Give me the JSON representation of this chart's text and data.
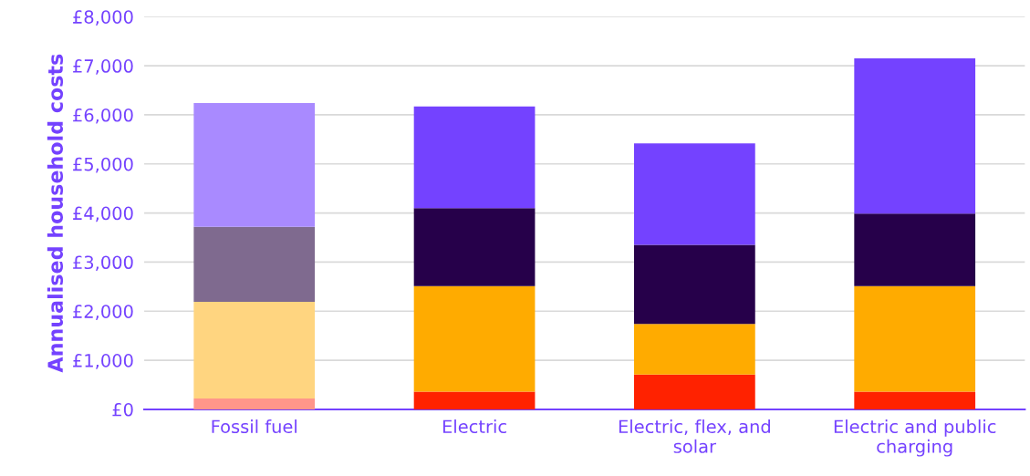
{
  "chart_data": {
    "type": "bar",
    "stacked": true,
    "ylabel": "Annualised household costs",
    "categories": [
      "Fossil fuel",
      "Electric",
      "Electric, flex, and solar",
      "Electric and public charging"
    ],
    "series": [
      {
        "colors": [
          "#ff968a",
          "#ff2200",
          "#ff2200",
          "#ff2200"
        ],
        "values": [
          220,
          360,
          710,
          360
        ]
      },
      {
        "colors": [
          "#ffd580",
          "#ffab00",
          "#ffab00",
          "#ffab00"
        ],
        "values": [
          1970,
          2150,
          1030,
          2150
        ]
      },
      {
        "colors": [
          "#7f6a8f",
          "#26004a",
          "#26004a",
          "#26004a"
        ],
        "values": [
          1530,
          1590,
          1610,
          1480
        ]
      },
      {
        "colors": [
          "#a98aff",
          "#7442ff",
          "#7442ff",
          "#7442ff"
        ],
        "values": [
          2520,
          2070,
          2070,
          3160
        ]
      }
    ],
    "ylim": [
      0,
      8000
    ],
    "yticks": [
      {
        "value": 0,
        "label": "£0"
      },
      {
        "value": 1000,
        "label": "£1,000"
      },
      {
        "value": 2000,
        "label": "£2,000"
      },
      {
        "value": 3000,
        "label": "£3,000"
      },
      {
        "value": 4000,
        "label": "£4,000"
      },
      {
        "value": 5000,
        "label": "£5,000"
      },
      {
        "value": 6000,
        "label": "£6,000"
      },
      {
        "value": 7000,
        "label": "£7,000"
      },
      {
        "value": 8000,
        "label": "£8,000"
      }
    ],
    "grid": "y"
  }
}
